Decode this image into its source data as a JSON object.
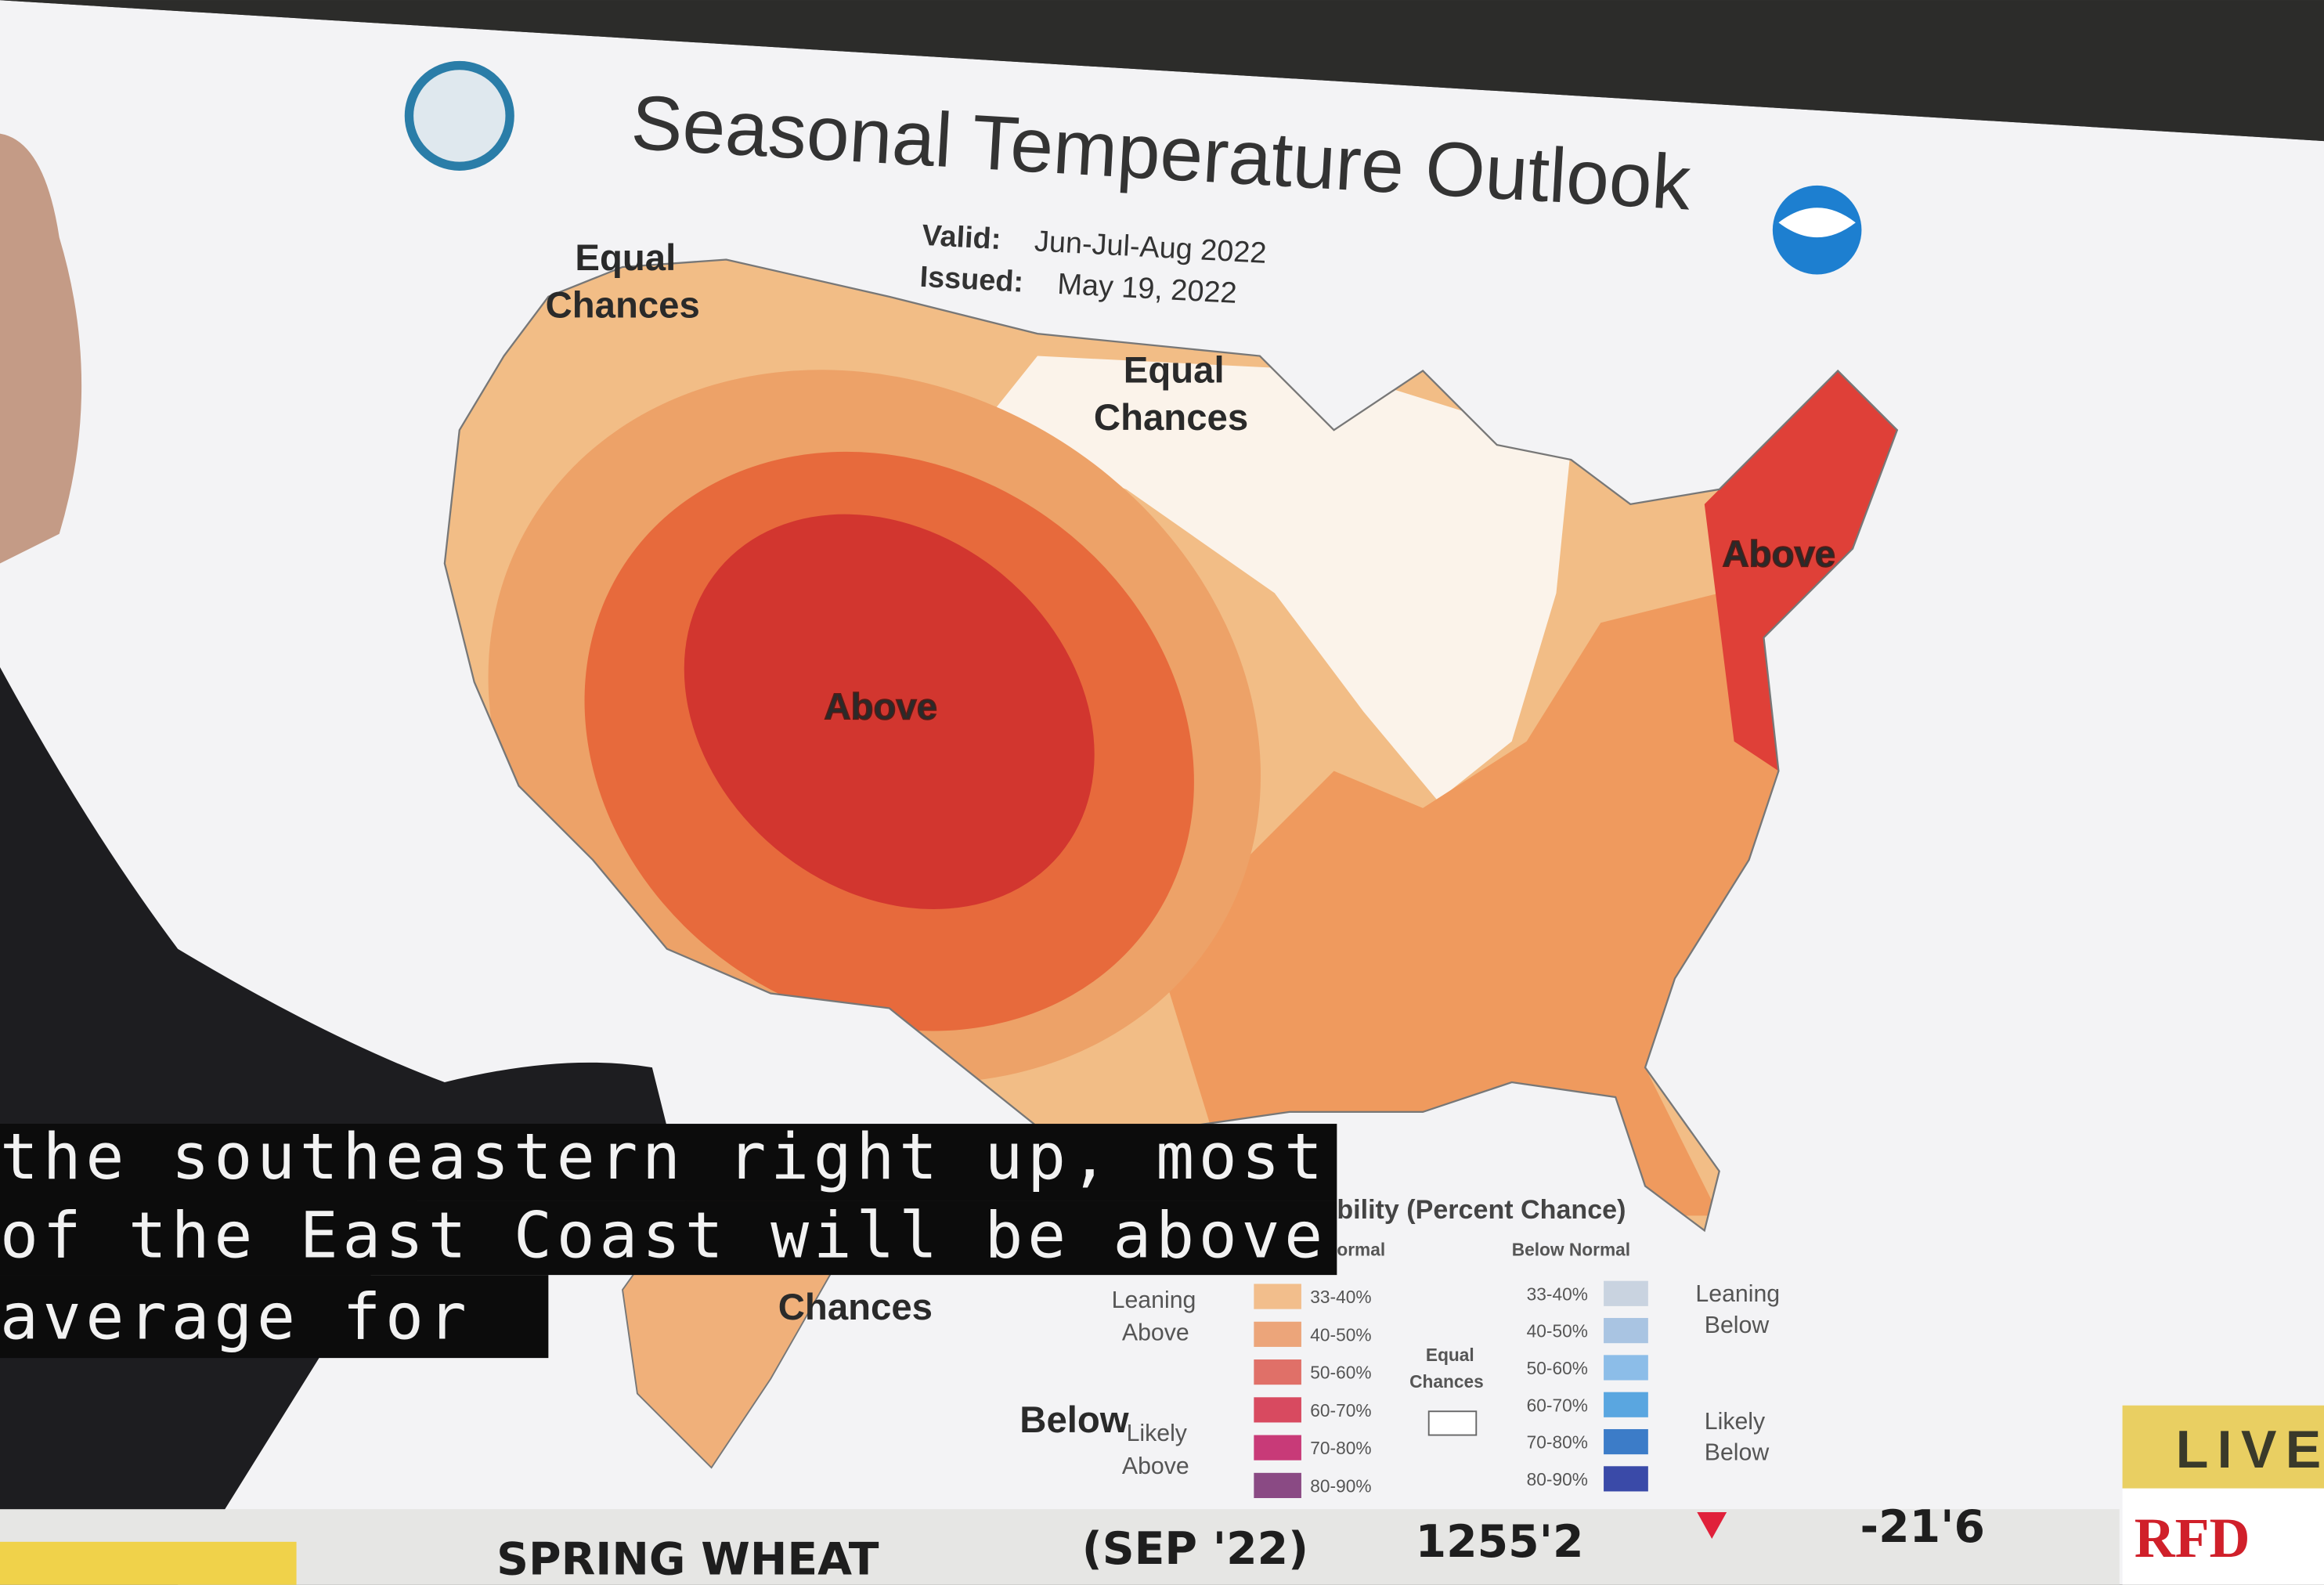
{
  "header": {
    "title": "Seasonal Temperature Outlook",
    "valid_label": "Valid:",
    "valid": "Jun-Jul-Aug 2022",
    "issued_label": "Issued:",
    "issued": "May 19, 2022"
  },
  "map_labels": [
    {
      "lines": [
        "Equal",
        "Chances"
      ]
    },
    {
      "lines": [
        "Equal",
        "Chances"
      ]
    },
    {
      "lines": [
        "Above"
      ]
    },
    {
      "lines": [
        "Above"
      ]
    },
    {
      "lines": [
        "Chances"
      ]
    },
    {
      "lines": [
        "Below"
      ]
    }
  ],
  "legend": {
    "title": "bility (Percent Chance)",
    "above_header": "ormal",
    "below_header": "Below Normal",
    "above_ranges": [
      "33-40%",
      "40-50%",
      "50-60%",
      "60-70%",
      "70-80%",
      "80-90%"
    ],
    "below_ranges": [
      "33-40%",
      "40-50%",
      "50-60%",
      "60-70%",
      "70-80%",
      "80-90%"
    ],
    "leaning_above": [
      "Leaning",
      "Above"
    ],
    "likely_above": [
      "Likely",
      "Above"
    ],
    "equal": [
      "Equal",
      "Chances"
    ],
    "leaning_below": [
      "Leaning",
      "Below"
    ],
    "likely_below": [
      "Likely",
      "Below"
    ]
  },
  "captions": [
    "the southeastern right up, most",
    "of the East Coast will be above",
    "average for"
  ],
  "ticker": {
    "commodity": "SPRING WHEAT",
    "contract": "(SEP '22)",
    "price": "1255'2",
    "change": "-21'6"
  },
  "bug": {
    "live": "LIVE",
    "station": "RFD"
  }
}
